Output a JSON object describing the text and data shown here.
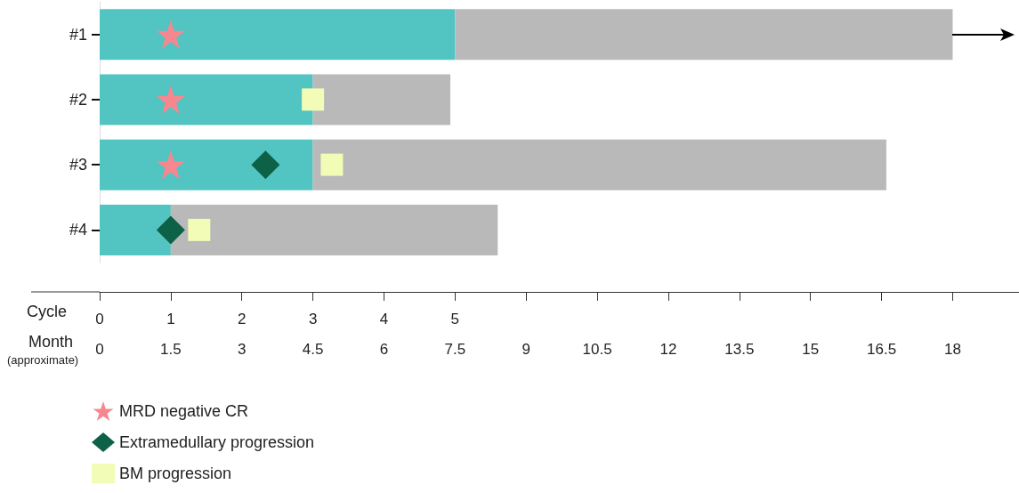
{
  "chart_data": {
    "type": "bar",
    "orientation": "horizontal",
    "stacked": true,
    "categories": [
      "#1",
      "#2",
      "#3",
      "#4"
    ],
    "series": [
      {
        "color": "#52c4c2",
        "values": [
          7.5,
          4.5,
          4.5,
          1.5
        ]
      },
      {
        "color": "#b9b9b9",
        "values": [
          10.5,
          2.9,
          12.1,
          6.9
        ]
      },
      {
        "type": "scatter",
        "name": "MRD negative CR",
        "color": "#f7878e",
        "marker": "star",
        "x": [
          "#1",
          "#2",
          "#3"
        ],
        "values": [
          1.5,
          1.5,
          1.5
        ]
      },
      {
        "type": "scatter",
        "name": "Extramedullary progression",
        "color": "#0d6147",
        "marker": "diamond",
        "x": [
          "#3",
          "#4"
        ],
        "values": [
          3.5,
          1.5
        ]
      },
      {
        "type": "scatter",
        "name": "BM progression",
        "color": "#f2fcb6",
        "marker": "square",
        "x": [
          "#2",
          "#3",
          "#4"
        ],
        "values": [
          4.5,
          4.9,
          2.1
        ]
      }
    ],
    "xlabel": "Month",
    "x2label": "Cycle",
    "xlim": [
      0,
      19.4
    ],
    "xticks": [
      0,
      1.5,
      3,
      4.5,
      6,
      7.5,
      9,
      10.5,
      12,
      13.5,
      15,
      16.5,
      18
    ],
    "x2lim": [
      0,
      12.9333
    ],
    "x2ticks": [
      0,
      1,
      2,
      3,
      4,
      5
    ],
    "annotations": [
      "(approximate)"
    ],
    "legend": "bottom left"
  }
}
